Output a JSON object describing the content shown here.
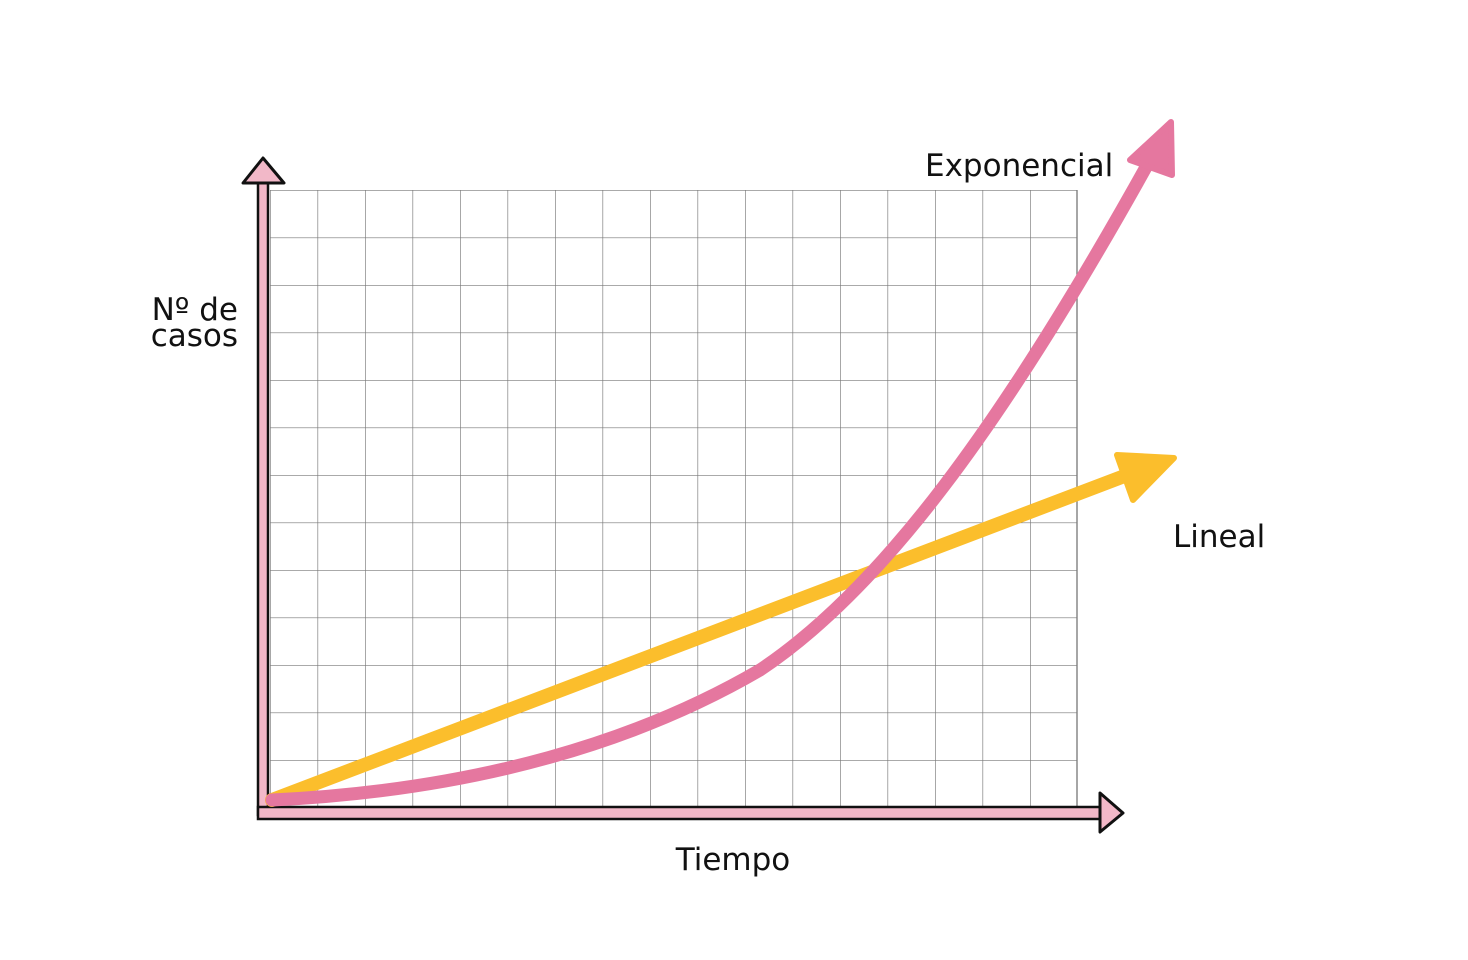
{
  "axes": {
    "y_label_lines": [
      "Nº de",
      "casos"
    ],
    "x_label": "Tiempo"
  },
  "curves": [
    {
      "label": "Exponencial"
    },
    {
      "label": "Lineal"
    }
  ]
}
